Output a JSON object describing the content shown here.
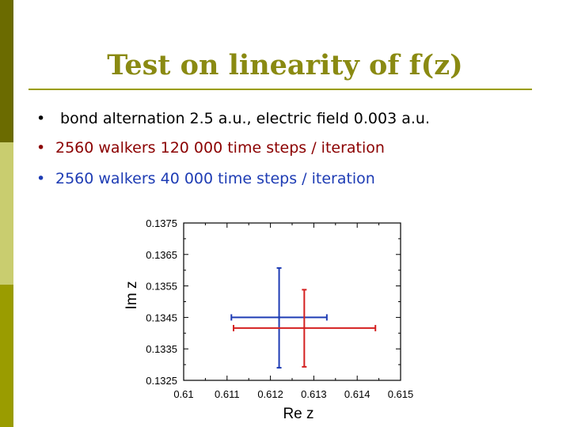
{
  "slide": {
    "title": "Test on linearity of f(z)",
    "bullets": [
      {
        "marker": "•",
        "text": " bond alternation 2.5 a.u., electric field 0.003 a.u.",
        "color": "#000000"
      },
      {
        "marker": "•",
        "text": "2560 walkers 120 000 time steps / iteration",
        "color": "#8b0000"
      },
      {
        "marker": "•",
        "text": "2560 walkers  40 000 time steps / iteration",
        "color": "#1e3cb4"
      }
    ],
    "stripe_colors": [
      "#6b6b00",
      "#c9cd6f",
      "#9a9c00"
    ]
  },
  "chart_data": {
    "type": "scatter",
    "xlabel": "Re z",
    "ylabel": "Im z",
    "xlim": [
      0.61,
      0.615
    ],
    "ylim": [
      0.1325,
      0.1375
    ],
    "x_ticks": [
      "0.61",
      "0.611",
      "0.612",
      "0.613",
      "0.614",
      "0.615"
    ],
    "y_ticks": [
      "0.1375",
      "0.1365",
      "0.1355",
      "0.1345",
      "0.1335",
      "0.1325"
    ],
    "series": [
      {
        "color": "#1e3cb4",
        "x": 0.6122,
        "y": 0.1345,
        "x_err": [
          0.6111,
          0.6133
        ],
        "y_err": [
          0.1329,
          0.13607
        ]
      },
      {
        "color": "#d42020",
        "x": 0.61278,
        "y": 0.13416,
        "x_err": [
          0.61115,
          0.61442
        ],
        "y_err": [
          0.13293,
          0.13538
        ]
      }
    ]
  }
}
